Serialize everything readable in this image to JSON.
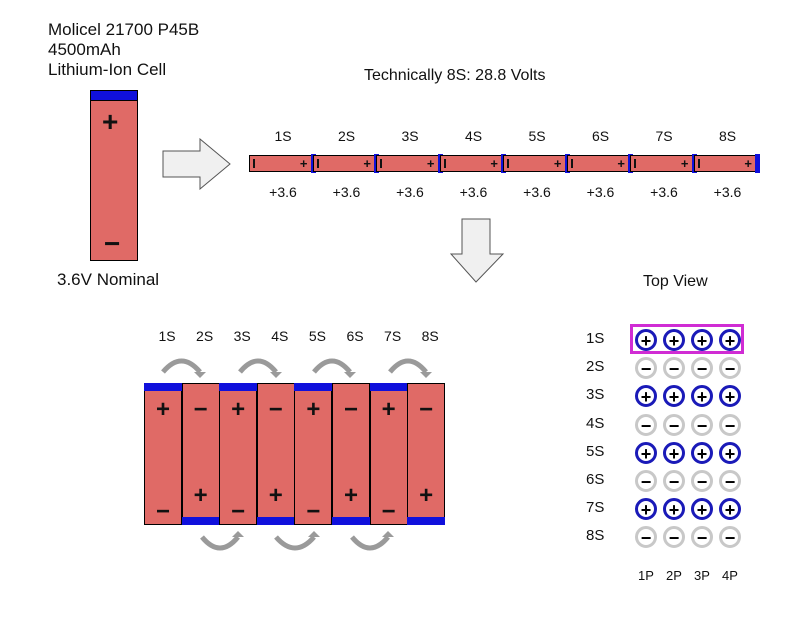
{
  "cell_info": {
    "line1": "Molicel 21700 P45B",
    "line2": "4500mAh",
    "line3": "Lithium-Ion Cell",
    "nominal": "3.6V Nominal",
    "plus": "+",
    "minus": "−"
  },
  "series_strip": {
    "title": "Technically 8S: 28.8 Volts",
    "labels": [
      "1S",
      "2S",
      "3S",
      "4S",
      "5S",
      "6S",
      "7S",
      "8S"
    ],
    "voltages": [
      "+3.6",
      "+3.6",
      "+3.6",
      "+3.6",
      "+3.6",
      "+3.6",
      "+3.6",
      "+3.6"
    ]
  },
  "stacked": {
    "labels": [
      "1S",
      "2S",
      "3S",
      "4S",
      "5S",
      "6S",
      "7S",
      "8S"
    ]
  },
  "top_view": {
    "title": "Top View",
    "rows": [
      "1S",
      "2S",
      "3S",
      "4S",
      "5S",
      "6S",
      "7S",
      "8S"
    ],
    "cols": [
      "1P",
      "2P",
      "3P",
      "4P"
    ],
    "plus_glyph": "+",
    "minus_glyph": "−"
  },
  "colors": {
    "cell_body": "#e06a66",
    "terminal": "#1010dc",
    "highlight": "#d02cd4",
    "positive_ring": "#1a1ab8",
    "negative_ring": "#c8c8c8"
  }
}
